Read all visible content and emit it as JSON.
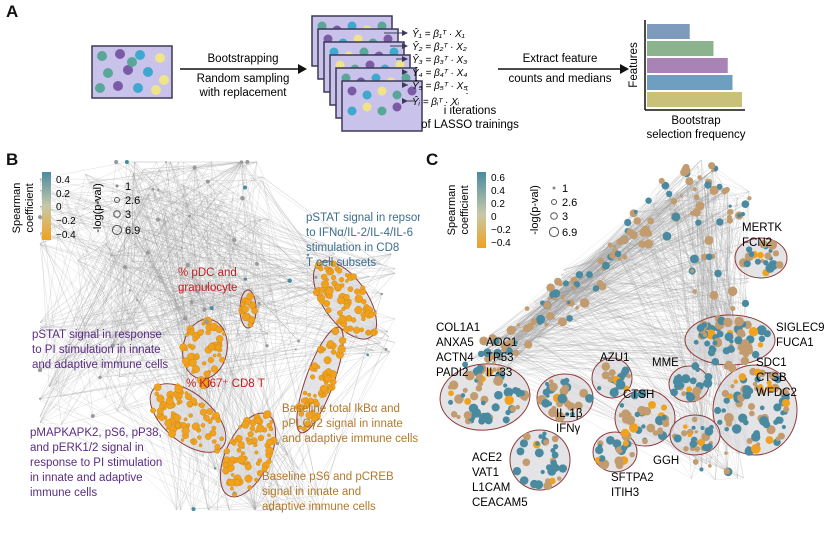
{
  "panels": {
    "a": "A",
    "b": "B",
    "c": "C"
  },
  "colors": {
    "purple_box": "#c9c2ea",
    "box_border": "#3a3a55",
    "dots": [
      "#5aa79a",
      "#7b5aa6",
      "#3fa8cf",
      "#f0e48a"
    ],
    "bars": [
      "#7e9bbd",
      "#8bb48e",
      "#a884b6",
      "#6f9fc0",
      "#c9c07a"
    ],
    "orange": "#f0a21e",
    "teal": "#4a8aa0",
    "tan": "#c29b6f",
    "network_line": "#9a9a9a",
    "label_blue": "#3d6e8c",
    "label_red": "#c02020",
    "label_purple": "#5a2d82",
    "label_tan": "#b07a2e",
    "cluster_border": "#8e3b3b"
  },
  "panel_a": {
    "step1": [
      "Bootstrapping",
      "Random sampling",
      "with replacement"
    ],
    "equations": [
      "Ŷ₁ = β₁ᵀ · X₁",
      "Ŷ₂ = β₂ᵀ · X₂",
      "Ŷ₃ = β₃ᵀ · X₃",
      "Ŷ₄ = β₄ᵀ · X₄",
      "Ŷ₅ = β₅ᵀ · X₅",
      "Ŷᵢ = βᵢᵀ · Xᵢ"
    ],
    "iterations": [
      "i iterations",
      "of LASSO trainings"
    ],
    "step2": [
      "Extract feature",
      "counts and medians"
    ],
    "ylabel": "Features",
    "xlabel": [
      "Bootstrap",
      "selection frequency"
    ],
    "bar_values": [
      0.45,
      0.7,
      0.85,
      0.9,
      1.0
    ]
  },
  "panel_b": {
    "legend_title": [
      "Spearman",
      "coefficient"
    ],
    "legend_ticks": [
      "0.4",
      "0.2",
      "0",
      "−0.2",
      "−0.4"
    ],
    "size_title": "-log(p-val)",
    "size_values": [
      "1",
      "2.6",
      "3",
      "6.9"
    ],
    "labels": {
      "pstat_cd8": [
        "pSTAT signal in repsonse",
        "to IFNα/IL-2/IL-4/IL-6",
        "stimulation in CD8",
        "T cell subsets"
      ],
      "pdc": [
        "% pDC and",
        "granulocyte"
      ],
      "pstat_pi": [
        "pSTAT signal in response",
        "to PI stimulation in innate",
        "and adaptive immune cells"
      ],
      "ki67": "% Ki67⁺ CD8 T",
      "ikb": [
        "Baseline total IkBα and",
        "pPLCγ2 signal in innate",
        "and adaptive immune cells"
      ],
      "mapk": [
        "pMAPKAPK2, pS6, pP38,",
        "and pERK1/2 signal in",
        "response to PI stimulation",
        "in innate and adaptive",
        "immune cells"
      ],
      "ps6": [
        "Baseline pS6 and pCREB",
        "signal in innate and",
        "adaptive immune cells"
      ]
    }
  },
  "panel_c": {
    "legend_title": [
      "Spearman",
      "coefficient"
    ],
    "legend_ticks": [
      "0.6",
      "0.4",
      "0.2",
      "0",
      "−0.2",
      "−0.4"
    ],
    "size_title": "-log(p-val)",
    "size_values": [
      "1",
      "2.6",
      "3",
      "6.9"
    ],
    "labels": {
      "mertk": [
        "MERTK",
        "FCN2"
      ],
      "siglec": [
        "SIGLEC9",
        "FUCA1"
      ],
      "col": [
        "COL1A1",
        "ANXA5",
        "ACTN4",
        "PADI2"
      ],
      "aoc": [
        "AOC1",
        "TP53",
        "IL-33"
      ],
      "azu": "AZU1",
      "mme": "MME",
      "sdc": [
        "SDC1",
        "CTSB",
        "WFDC2"
      ],
      "ctsh": "CTSH",
      "il1b": [
        "IL-1β",
        "IFNγ"
      ],
      "ace": [
        "ACE2",
        "VAT1",
        "L1CAM",
        "CEACAM5"
      ],
      "sftpa": [
        "SFTPA2",
        "ITIH3"
      ],
      "ggh": "GGH"
    }
  }
}
